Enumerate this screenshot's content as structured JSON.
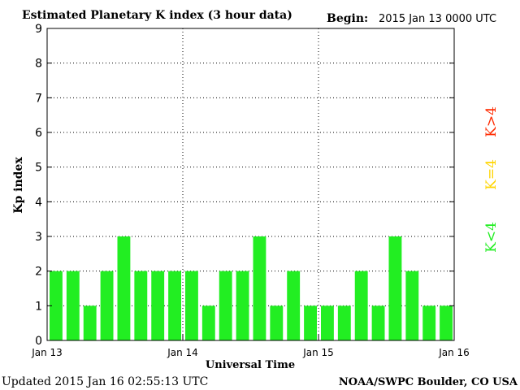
{
  "header": {
    "title": "Estimated Planetary K index (3 hour data)",
    "begin_label": "Begin:",
    "begin_value": "2015 Jan 13 0000 UTC"
  },
  "footer": {
    "updated": "Updated 2015 Jan 16 02:55:13 UTC",
    "source": "NOAA/SWPC Boulder, CO USA"
  },
  "legend": {
    "items": [
      {
        "label": "K>4",
        "color": "#ff2a00"
      },
      {
        "label": "K=4",
        "color": "#ffd500"
      },
      {
        "label": "K<4",
        "color": "#22ee22"
      }
    ]
  },
  "chart_data": {
    "type": "bar",
    "title": "Estimated Planetary K index (3 hour data)",
    "xlabel": "Universal Time",
    "ylabel": "Kp index",
    "ylim": [
      0,
      9
    ],
    "yticks": [
      "0",
      "1",
      "2",
      "3",
      "4",
      "5",
      "6",
      "7",
      "8",
      "9"
    ],
    "xticks": [
      "Jan 13",
      "Jan 14",
      "Jan 15",
      "Jan 16"
    ],
    "grid": true,
    "bar_color": "#22ee22",
    "categories": [
      "Jan 13 00",
      "Jan 13 03",
      "Jan 13 06",
      "Jan 13 09",
      "Jan 13 12",
      "Jan 13 15",
      "Jan 13 18",
      "Jan 13 21",
      "Jan 14 00",
      "Jan 14 03",
      "Jan 14 06",
      "Jan 14 09",
      "Jan 14 12",
      "Jan 14 15",
      "Jan 14 18",
      "Jan 14 21",
      "Jan 15 00",
      "Jan 15 03",
      "Jan 15 06",
      "Jan 15 09",
      "Jan 15 12",
      "Jan 15 15",
      "Jan 15 18",
      "Jan 15 21"
    ],
    "values": [
      2,
      2,
      1,
      2,
      3,
      2,
      2,
      2,
      2,
      1,
      2,
      2,
      3,
      1,
      2,
      1,
      1,
      1,
      2,
      1,
      3,
      2,
      1,
      1
    ]
  }
}
